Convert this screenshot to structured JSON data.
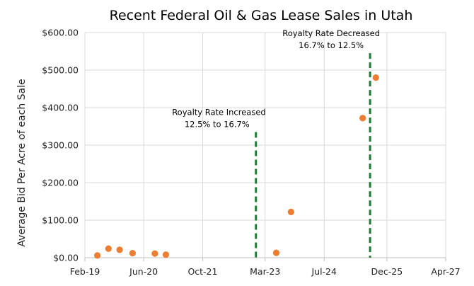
{
  "chart_data": {
    "type": "scatter",
    "title": "Recent Federal Oil & Gas Lease Sales in Utah",
    "xlabel": "",
    "ylabel": "Average Bid Per Acre of each Sale",
    "x_ticks": [
      {
        "date": "2019-02-01",
        "label": "Feb-19"
      },
      {
        "date": "2020-06-01",
        "label": "Jun-20"
      },
      {
        "date": "2021-10-01",
        "label": "Oct-21"
      },
      {
        "date": "2023-03-01",
        "label": "Mar-23"
      },
      {
        "date": "2024-07-01",
        "label": "Jul-24"
      },
      {
        "date": "2025-12-01",
        "label": "Dec-25"
      },
      {
        "date": "2027-04-01",
        "label": "Apr-27"
      }
    ],
    "xlim": [
      "2019-02-01",
      "2027-04-01"
    ],
    "y_ticks": [
      {
        "value": 0,
        "label": "$0.00"
      },
      {
        "value": 100,
        "label": "$100.00"
      },
      {
        "value": 200,
        "label": "$200.00"
      },
      {
        "value": 300,
        "label": "$300.00"
      },
      {
        "value": 400,
        "label": "$400.00"
      },
      {
        "value": 500,
        "label": "$500.00"
      },
      {
        "value": 600,
        "label": "$600.00"
      }
    ],
    "ylim": [
      0,
      600
    ],
    "grid": true,
    "series": [
      {
        "color": "#ED7D31",
        "points": [
          {
            "x": "2019-05-15",
            "y": 6
          },
          {
            "x": "2019-08-15",
            "y": 24
          },
          {
            "x": "2019-11-15",
            "y": 21
          },
          {
            "x": "2020-03-01",
            "y": 12
          },
          {
            "x": "2020-09-01",
            "y": 11
          },
          {
            "x": "2020-12-01",
            "y": 8
          },
          {
            "x": "2023-06-01",
            "y": 13
          },
          {
            "x": "2023-10-01",
            "y": 122
          },
          {
            "x": "2025-05-15",
            "y": 372
          },
          {
            "x": "2025-09-01",
            "y": 480
          }
        ]
      }
    ],
    "reference_lines": [
      {
        "x": "2022-12-15",
        "y_top": 335,
        "color": "#1E7B34",
        "text_line1": "Royalty Rate Increased",
        "text_line2": "12.5% to 16.7%"
      },
      {
        "x": "2025-07-15",
        "y_top": 545,
        "color": "#1E7B34",
        "text_line1": "Royalty Rate Decreased",
        "text_line2": "16.7% to 12.5%"
      }
    ]
  }
}
